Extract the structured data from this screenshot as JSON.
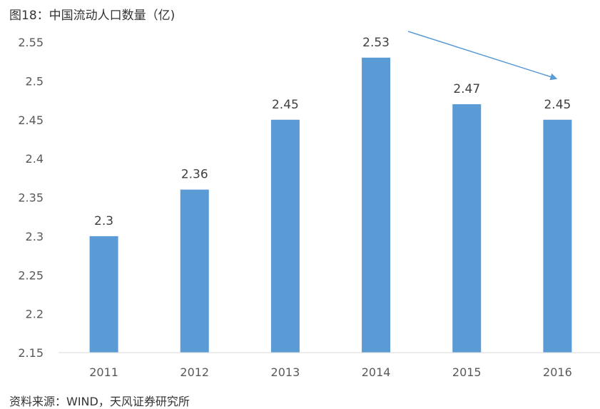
{
  "figure": {
    "title": "图18：中国流动人口数量（亿)",
    "source": "资料来源：WIND，天风证券研究所"
  },
  "chart_data": {
    "type": "bar",
    "title": "中国流动人口数量（亿)",
    "categories": [
      "2011",
      "2012",
      "2013",
      "2014",
      "2015",
      "2016"
    ],
    "values": [
      2.3,
      2.36,
      2.45,
      2.53,
      2.47,
      2.45
    ],
    "data_labels": [
      "2.3",
      "2.36",
      "2.45",
      "2.53",
      "2.47",
      "2.45"
    ],
    "ylim": [
      2.15,
      2.55
    ],
    "yticks": [
      2.15,
      2.2,
      2.25,
      2.3,
      2.35,
      2.4,
      2.45,
      2.5,
      2.55
    ],
    "ytick_labels": [
      "2.15",
      "2.2",
      "2.25",
      "2.3",
      "2.35",
      "2.4",
      "2.45",
      "2.5",
      "2.55"
    ],
    "grid": false,
    "legend": "none",
    "annotation": "downward trend arrow from 2014 toward 2016",
    "colors": {
      "bar": "#5B9BD5",
      "arrow": "#5B9BD5",
      "axis": "#D9D9D9"
    }
  }
}
